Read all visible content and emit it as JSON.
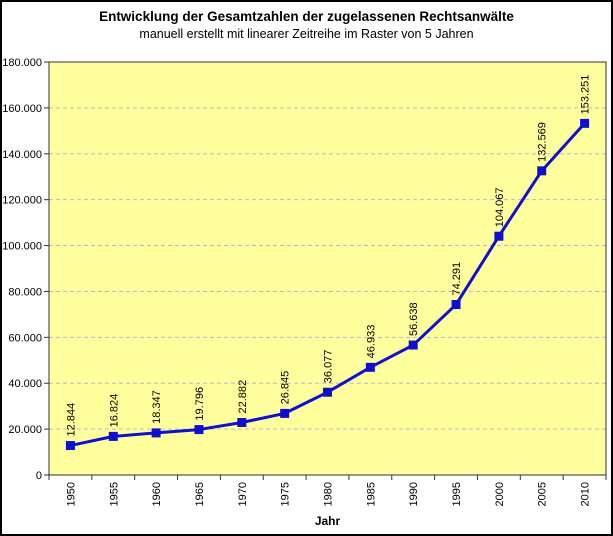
{
  "header": {
    "title": "Entwicklung der Gesamtzahlen der zugelassenen Rechtsanwälte",
    "subtitle": "manuell erstellt mit linearer Zeitreihe im Raster von 5 Jahren"
  },
  "chart_data": {
    "type": "line",
    "title": "Entwicklung der Gesamtzahlen der zugelassenen Rechtsanwälte",
    "subtitle": "manuell erstellt mit linearer Zeitreihe im Raster von 5 Jahren",
    "xlabel": "Jahr",
    "ylabel": "",
    "categories": [
      "1950",
      "1955",
      "1960",
      "1965",
      "1970",
      "1975",
      "1980",
      "1985",
      "1990",
      "1995",
      "2000",
      "2005",
      "2010"
    ],
    "values": [
      12844,
      16824,
      18347,
      19796,
      22882,
      26845,
      36077,
      46933,
      56638,
      74291,
      104067,
      132569,
      153251
    ],
    "value_labels": [
      "12.844",
      "16.824",
      "18.347",
      "19.796",
      "22.882",
      "26.845",
      "36.077",
      "46.933",
      "56.638",
      "74.291",
      "104.067",
      "132.569",
      "153.251"
    ],
    "ylim": [
      0,
      180000
    ],
    "ytick_step": 20000,
    "ytick_labels": [
      "0",
      "20.000",
      "40.000",
      "60.000",
      "80.000",
      "100.000",
      "120.000",
      "140.000",
      "160.000",
      "180.000"
    ],
    "grid": "horizontal-dashed",
    "legend": "none",
    "marker": "square",
    "colors": {
      "line": "#1010cc",
      "marker": "#1010cc",
      "plot_bg": "#ffff9e",
      "grid": "#b9b9c9",
      "axis": "#333333",
      "text": "#000000",
      "outer_bg": "#ffffff",
      "border": "#000000"
    }
  }
}
